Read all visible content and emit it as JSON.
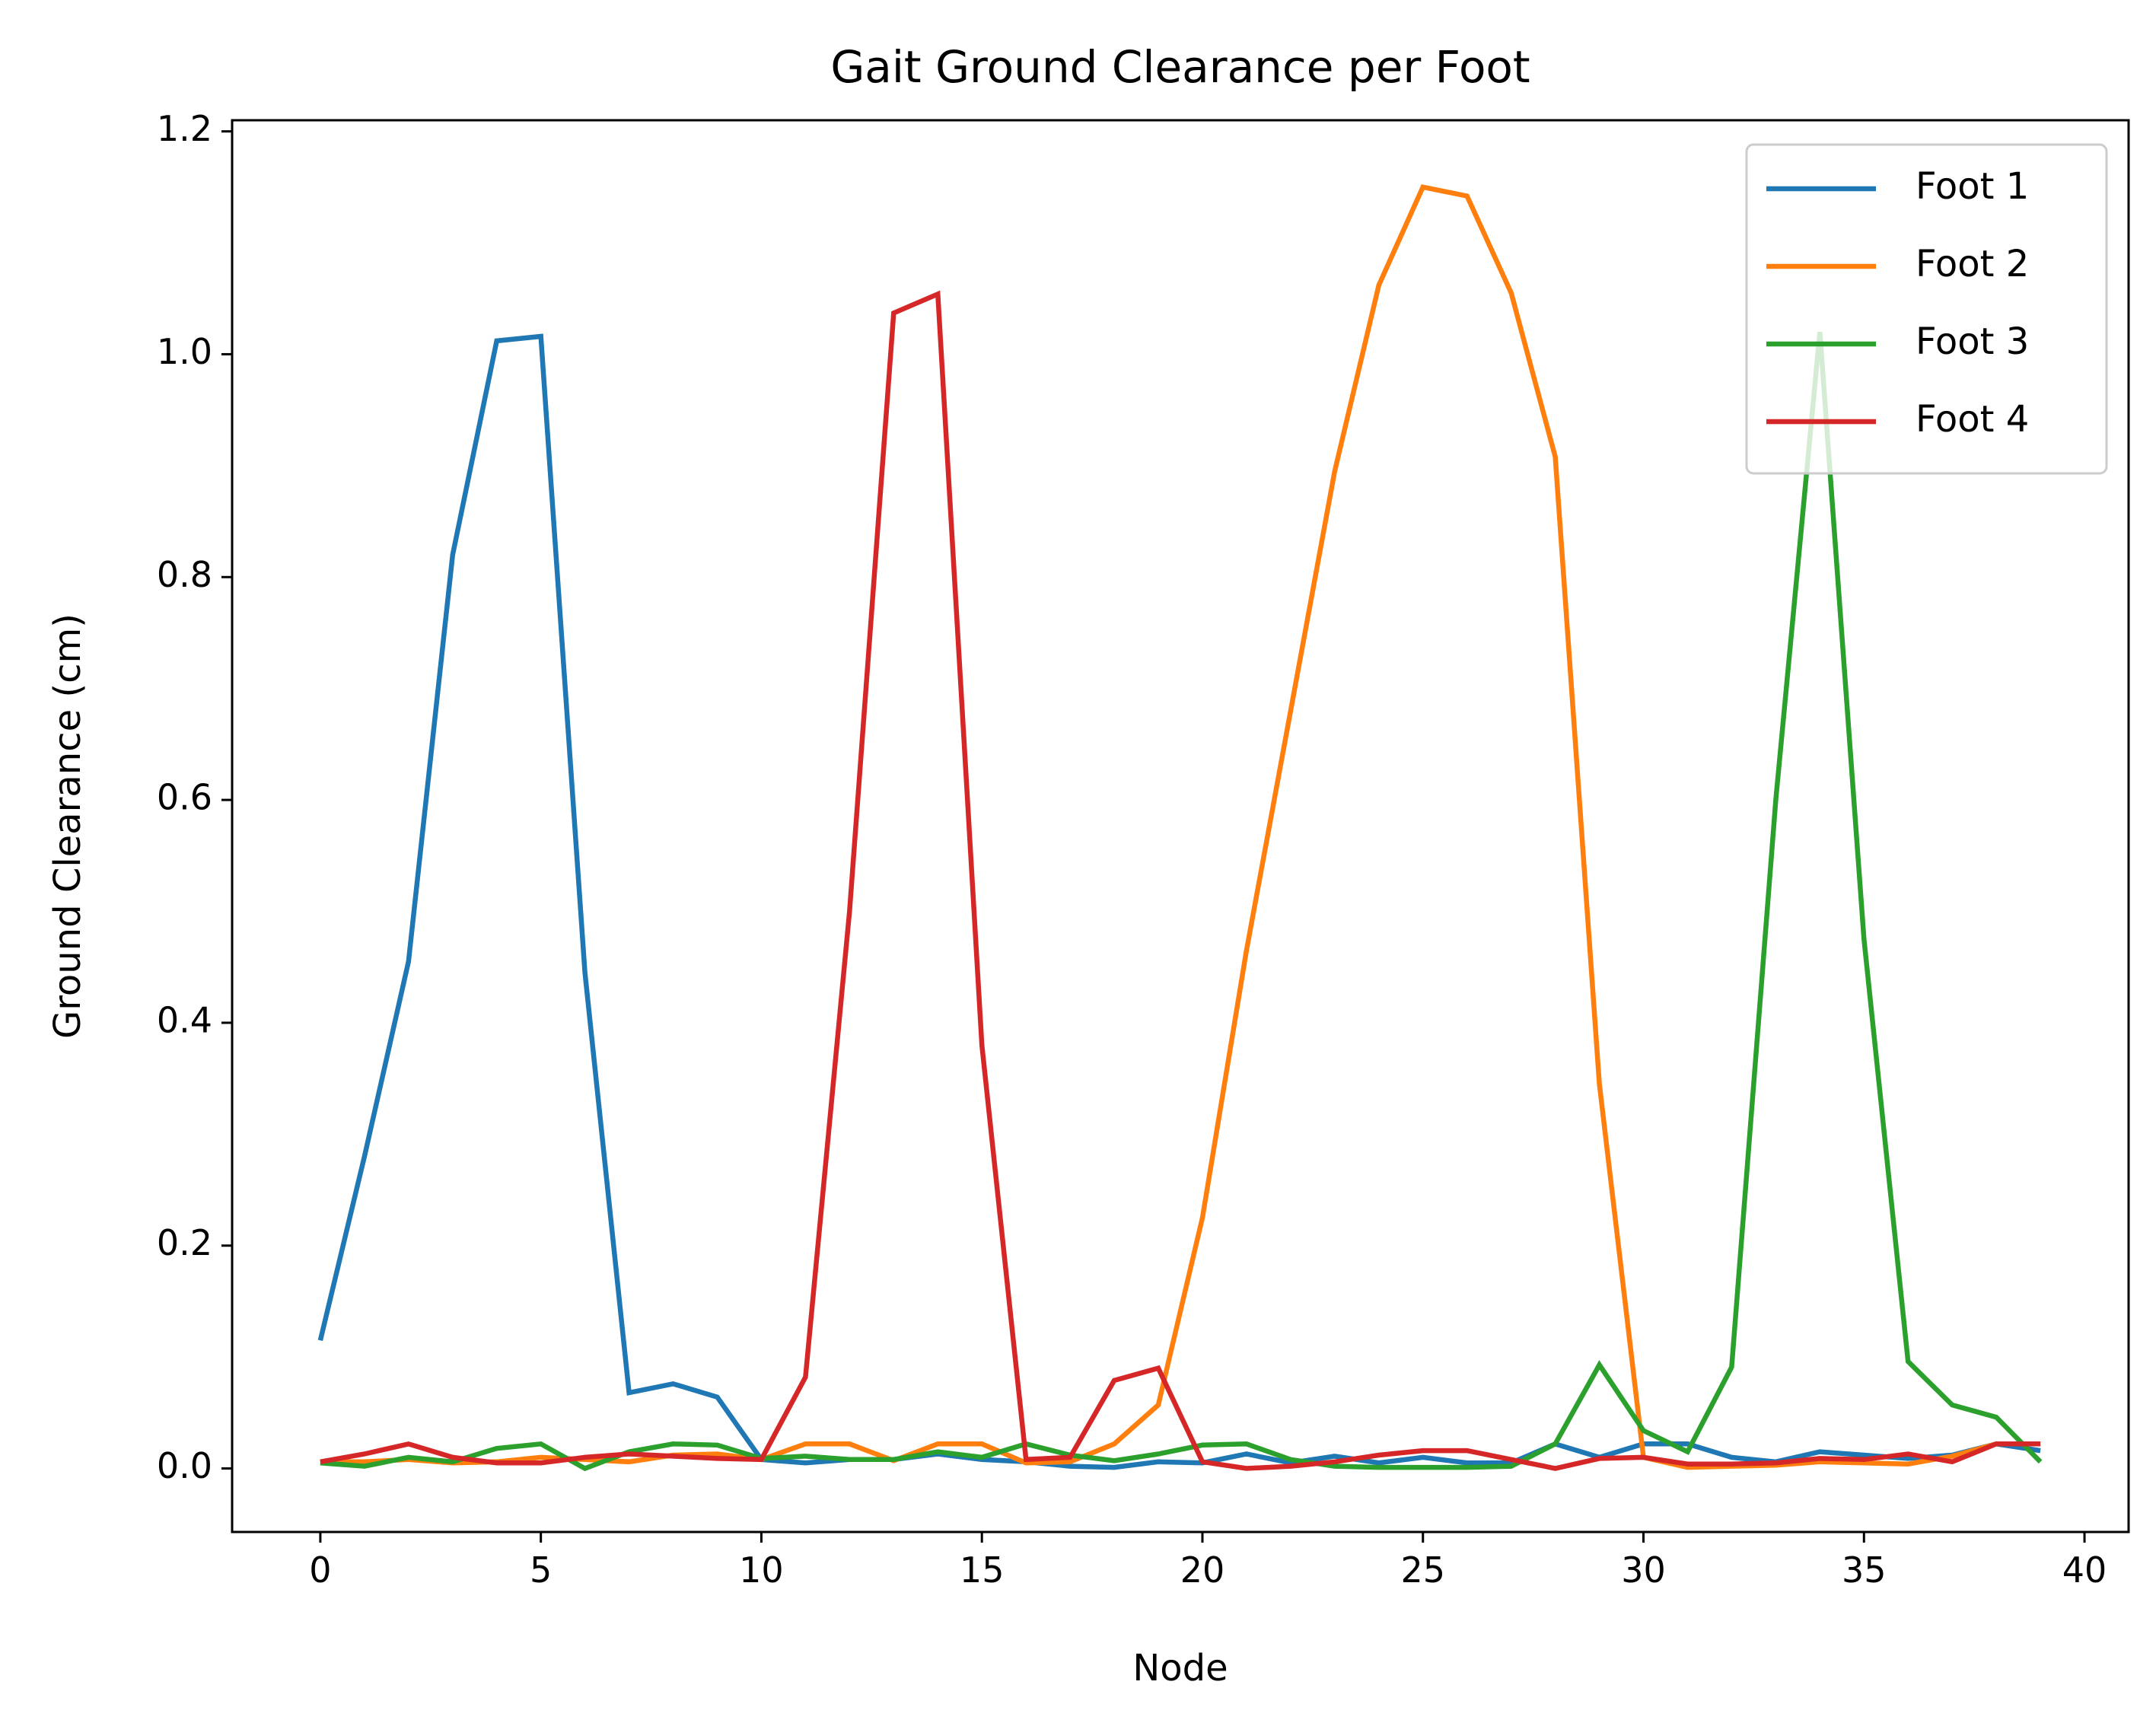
{
  "chart_data": {
    "type": "line",
    "title": "Gait Ground Clearance per Foot",
    "xlabel": "Node",
    "ylabel": "Ground Clearance (cm)",
    "xlim": [
      -2,
      41
    ],
    "ylim": [
      -0.057,
      1.21
    ],
    "xticks": [
      0,
      5,
      10,
      15,
      20,
      25,
      30,
      35,
      40
    ],
    "yticks": [
      0.0,
      0.2,
      0.4,
      0.6,
      0.8,
      1.0,
      1.2
    ],
    "xtick_labels": [
      "0",
      "5",
      "10",
      "15",
      "20",
      "25",
      "30",
      "35",
      "40"
    ],
    "ytick_labels": [
      "0.0",
      "0.2",
      "0.4",
      "0.6",
      "0.8",
      "1.0",
      "1.2"
    ],
    "grid": false,
    "legend_position": "top-right",
    "x": [
      0,
      1,
      2,
      3,
      4,
      5,
      6,
      7,
      8,
      9,
      10,
      11,
      12,
      13,
      14,
      15,
      16,
      17,
      18,
      19,
      20,
      21,
      22,
      23,
      24,
      25,
      26,
      27,
      28,
      29,
      30,
      31,
      32,
      33,
      34,
      35,
      36,
      37,
      38,
      39
    ],
    "series": [
      {
        "name": "Foot 1",
        "color": "#1f77b4",
        "values": [
          0.115,
          0.28,
          0.455,
          0.82,
          1.012,
          1.016,
          0.445,
          0.068,
          0.076,
          0.064,
          0.008,
          0.005,
          0.008,
          0.008,
          0.013,
          0.008,
          0.006,
          0.002,
          0.001,
          0.006,
          0.005,
          0.013,
          0.005,
          0.011,
          0.005,
          0.01,
          0.005,
          0.005,
          0.022,
          0.01,
          0.022,
          0.022,
          0.01,
          0.006,
          0.015,
          0.012,
          0.009,
          0.012,
          0.022,
          0.016
        ]
      },
      {
        "name": "Foot 2",
        "color": "#ff7f0e",
        "values": [
          0.006,
          0.006,
          0.008,
          0.005,
          0.006,
          0.01,
          0.008,
          0.006,
          0.012,
          0.013,
          0.008,
          0.022,
          0.022,
          0.007,
          0.022,
          0.022,
          0.005,
          0.006,
          0.022,
          0.057,
          0.225,
          0.465,
          0.68,
          0.895,
          1.062,
          1.15,
          1.142,
          1.055,
          0.908,
          0.345,
          0.01,
          0.001,
          0.002,
          0.003,
          0.006,
          0.005,
          0.004,
          0.011,
          0.022,
          0.022
        ]
      },
      {
        "name": "Foot 3",
        "color": "#2ca02c",
        "values": [
          0.005,
          0.002,
          0.01,
          0.006,
          0.018,
          0.022,
          0.0,
          0.015,
          0.022,
          0.021,
          0.009,
          0.011,
          0.008,
          0.008,
          0.015,
          0.01,
          0.022,
          0.012,
          0.007,
          0.013,
          0.021,
          0.022,
          0.008,
          0.002,
          0.001,
          0.001,
          0.001,
          0.002,
          0.022,
          0.093,
          0.034,
          0.015,
          0.091,
          0.6,
          1.02,
          0.475,
          0.096,
          0.057,
          0.046,
          0.006
        ]
      },
      {
        "name": "Foot 4",
        "color": "#d62728",
        "values": [
          0.006,
          0.013,
          0.022,
          0.01,
          0.005,
          0.005,
          0.01,
          0.013,
          0.011,
          0.009,
          0.008,
          0.082,
          0.5,
          1.037,
          1.054,
          0.38,
          0.008,
          0.01,
          0.079,
          0.09,
          0.006,
          0.0,
          0.002,
          0.006,
          0.012,
          0.016,
          0.016,
          0.008,
          0.0,
          0.009,
          0.01,
          0.004,
          0.004,
          0.005,
          0.009,
          0.008,
          0.013,
          0.006,
          0.022,
          0.022
        ]
      }
    ]
  }
}
